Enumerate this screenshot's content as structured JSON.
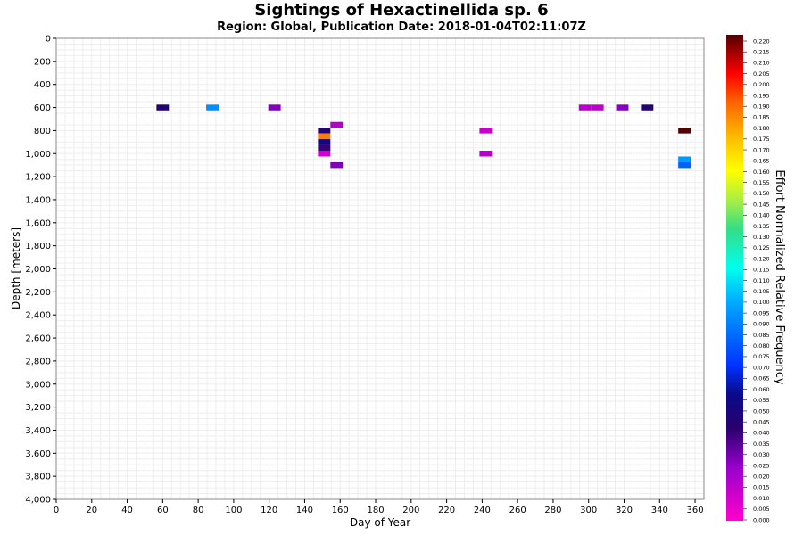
{
  "chart_data": {
    "type": "heatmap",
    "title": "Sightings of Hexactinellida sp. 6",
    "subtitle": "Region: Global, Publication Date: 2018-01-04T02:11:07Z",
    "xlabel": "Day of Year",
    "ylabel": "Depth [meters]",
    "colorbar_label": "Effort Normalized Relative Frequency",
    "xlim": [
      0,
      365
    ],
    "ylim": [
      0,
      4000
    ],
    "y_inverted": true,
    "x_ticks": [
      0,
      20,
      40,
      60,
      80,
      100,
      120,
      140,
      160,
      180,
      200,
      220,
      240,
      260,
      280,
      300,
      320,
      340,
      360
    ],
    "y_ticks": [
      "0",
      "200",
      "400",
      "600",
      "800",
      "1,000",
      "1,200",
      "1,400",
      "1,600",
      "1,800",
      "2,000",
      "2,200",
      "2,400",
      "2,600",
      "2,800",
      "3,000",
      "3,200",
      "3,400",
      "3,600",
      "3,800",
      "4,000"
    ],
    "y_tick_values": [
      0,
      200,
      400,
      600,
      800,
      1000,
      1200,
      1400,
      1600,
      1800,
      2000,
      2200,
      2400,
      2600,
      2800,
      3000,
      3200,
      3400,
      3600,
      3800,
      4000
    ],
    "colorbar_range": [
      0,
      0.22
    ],
    "colorbar_ticks": [
      "0.000",
      "0.005",
      "0.010",
      "0.015",
      "0.020",
      "0.025",
      "0.030",
      "0.035",
      "0.040",
      "0.045",
      "0.050",
      "0.055",
      "0.060",
      "0.065",
      "0.070",
      "0.075",
      "0.080",
      "0.085",
      "0.090",
      "0.095",
      "0.100",
      "0.105",
      "0.110",
      "0.115",
      "0.120",
      "0.125",
      "0.130",
      "0.135",
      "0.140",
      "0.145",
      "0.150",
      "0.155",
      "0.160",
      "0.165",
      "0.170",
      "0.175",
      "0.180",
      "0.185",
      "0.190",
      "0.195",
      "0.200",
      "0.205",
      "0.210",
      "0.215",
      "0.220"
    ],
    "cell_day_width": 7,
    "cell_depth_height": 50,
    "cells": [
      {
        "day": 60,
        "depth": 600,
        "value": 0.045
      },
      {
        "day": 88,
        "depth": 600,
        "value": 0.093
      },
      {
        "day": 123,
        "depth": 600,
        "value": 0.027
      },
      {
        "day": 151,
        "depth": 800,
        "value": 0.045
      },
      {
        "day": 151,
        "depth": 850,
        "value": 0.185
      },
      {
        "day": 151,
        "depth": 900,
        "value": 0.05
      },
      {
        "day": 151,
        "depth": 950,
        "value": 0.04
      },
      {
        "day": 151,
        "depth": 1000,
        "value": 0.012
      },
      {
        "day": 158,
        "depth": 750,
        "value": 0.018
      },
      {
        "day": 158,
        "depth": 1100,
        "value": 0.028
      },
      {
        "day": 242,
        "depth": 800,
        "value": 0.012
      },
      {
        "day": 242,
        "depth": 1000,
        "value": 0.018
      },
      {
        "day": 298,
        "depth": 600,
        "value": 0.016
      },
      {
        "day": 305,
        "depth": 600,
        "value": 0.016
      },
      {
        "day": 319,
        "depth": 600,
        "value": 0.027
      },
      {
        "day": 333,
        "depth": 600,
        "value": 0.045
      },
      {
        "day": 354,
        "depth": 800,
        "value": 0.22
      },
      {
        "day": 354,
        "depth": 1050,
        "value": 0.095
      },
      {
        "day": 354,
        "depth": 1100,
        "value": 0.082
      }
    ]
  }
}
